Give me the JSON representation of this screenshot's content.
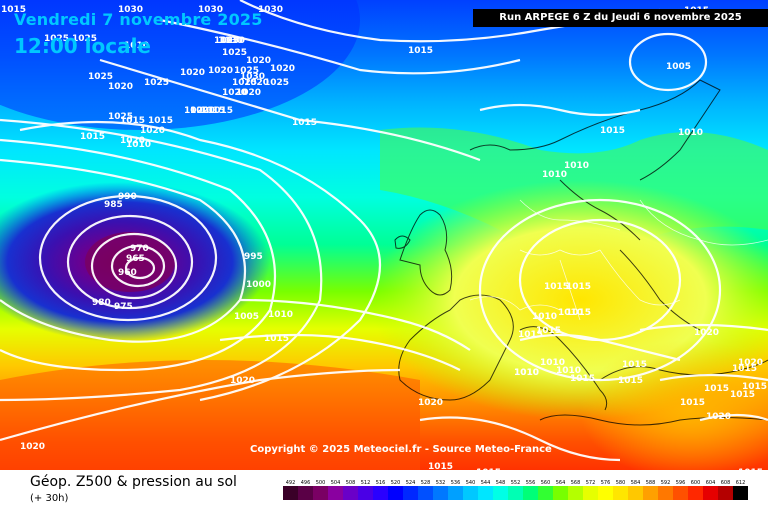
{
  "header": {
    "date_title": "Vendredi 7 novembre 2025",
    "time_title": "12:00 locale",
    "run_info": "Run ARPEGE 6 Z du Jeudi 6 novembre 2025"
  },
  "footer": {
    "copyright": "Copyright © 2025 Meteociel.fr - Source Meteo-France",
    "title": "Géop. Z500 & pression au sol",
    "subtitle": "(+ 30h)"
  },
  "legend": {
    "scale_values": [
      "492",
      "496",
      "500",
      "504",
      "508",
      "512",
      "516",
      "520",
      "524",
      "528",
      "532",
      "536",
      "540",
      "544",
      "548",
      "552",
      "556",
      "560",
      "564",
      "568",
      "572",
      "576",
      "580",
      "584",
      "588",
      "592",
      "596",
      "600",
      "604",
      "608",
      "612"
    ],
    "scale_colors": [
      "#3a0028",
      "#5a0046",
      "#7a0064",
      "#8a00a0",
      "#6a00c8",
      "#4a00e6",
      "#2a00ff",
      "#0000ff",
      "#0028ff",
      "#0050ff",
      "#0078ff",
      "#00a0ff",
      "#00c8ff",
      "#00e6ff",
      "#00ffe6",
      "#00ffb4",
      "#00ff78",
      "#32ff32",
      "#78ff00",
      "#b4ff00",
      "#e6ff00",
      "#ffff00",
      "#ffe600",
      "#ffc800",
      "#ffa000",
      "#ff7800",
      "#ff5000",
      "#ff2800",
      "#e60000",
      "#b40000",
      "#000000"
    ]
  },
  "isobars": {
    "labels": [
      "1030",
      "1025",
      "1025",
      "1030",
      "1030",
      "1025",
      "1020",
      "1015",
      "1025",
      "1020",
      "1025",
      "1020",
      "1015",
      "1020",
      "1030",
      "1015",
      "1015",
      "1015",
      "1015",
      "1020",
      "1020",
      "1020",
      "1015",
      "1010",
      "1020",
      "1025",
      "1020",
      "1025",
      "1015",
      "1010",
      "1015",
      "1010",
      "990",
      "985",
      "970",
      "965",
      "960",
      "975",
      "980",
      "995",
      "1000",
      "1005",
      "1010",
      "1015",
      "1020",
      "1020",
      "1010",
      "1020",
      "1010",
      "1015",
      "1015",
      "1015",
      "1015",
      "1010",
      "1015",
      "1010",
      "1010",
      "1010",
      "1010",
      "1015",
      "1015",
      "1020",
      "1015",
      "1015",
      "1015",
      "1015",
      "1020",
      "1015",
      "1015",
      "1015",
      "1020",
      "1015",
      "1015",
      "1005",
      "1010",
      "1025",
      "1025",
      "1020",
      "1030",
      "1030",
      "1025",
      "1020",
      "1020",
      "1015"
    ]
  }
}
